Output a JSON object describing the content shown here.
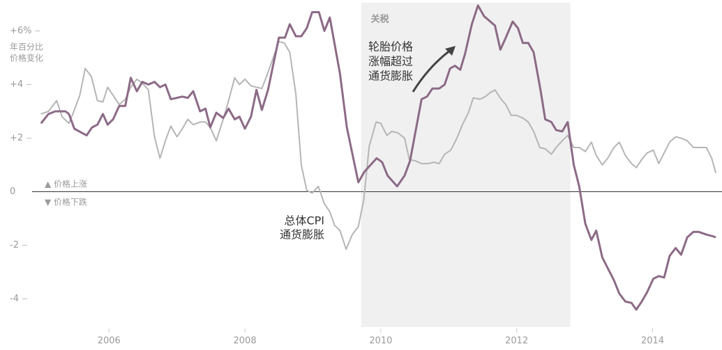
{
  "chart_data": {
    "type": "line",
    "unit_note": [
      "年百分比",
      "价格变化"
    ],
    "annotations": [
      "▲ 价格上涨",
      "▼ 价格下跌"
    ],
    "shaded": {
      "label": "关税",
      "x": [
        2009.71,
        2012.79
      ],
      "color": "#f0f0f0"
    },
    "xlim": [
      2004.55,
      2014.97
    ],
    "ylim": [
      -5.05,
      7.05
    ],
    "xticks": [
      2006,
      2008,
      2010,
      2012,
      2014
    ],
    "yticks": [
      {
        "value": 6,
        "label": "+6%"
      },
      {
        "value": 4,
        "label": "+4"
      },
      {
        "value": 2,
        "label": "+2"
      },
      0,
      -2,
      -4
    ],
    "series": [
      {
        "name": [
          "轮胎价格",
          "涨幅超过",
          "通货膨胀"
        ],
        "color": "#8c6a86",
        "x": [
          2005.0,
          2005.11,
          2005.21,
          2005.36,
          2005.41,
          2005.49,
          2005.67,
          2005.75,
          2005.83,
          2005.91,
          2005.98,
          2006.06,
          2006.15,
          2006.24,
          2006.32,
          2006.41,
          2006.49,
          2006.58,
          2006.67,
          2006.75,
          2006.83,
          2006.91,
          2007.08,
          2007.16,
          2007.24,
          2007.34,
          2007.42,
          2007.49,
          2007.58,
          2007.68,
          2007.76,
          2007.85,
          2007.92,
          2008.0,
          2008.09,
          2008.17,
          2008.25,
          2008.34,
          2008.5,
          2008.59,
          2008.66,
          2008.75,
          2008.83,
          2008.91,
          2008.99,
          2009.09,
          2009.17,
          2009.25,
          2009.4,
          2009.5,
          2009.67,
          2009.76,
          2009.94,
          2010.02,
          2010.1,
          2010.24,
          2010.35,
          2010.43,
          2010.6,
          2010.68,
          2010.76,
          2010.86,
          2010.94,
          2011.02,
          2011.09,
          2011.17,
          2011.24,
          2011.34,
          2011.43,
          2011.52,
          2011.68,
          2011.76,
          2011.84,
          2011.94,
          2012.02,
          2012.09,
          2012.17,
          2012.25,
          2012.35,
          2012.42,
          2012.51,
          2012.58,
          2012.67,
          2012.75,
          2012.84,
          2012.92,
          2013.01,
          2013.1,
          2013.17,
          2013.26,
          2013.34,
          2013.43,
          2013.51,
          2013.6,
          2013.69,
          2013.76,
          2013.84,
          2013.92,
          2014.01,
          2014.09,
          2014.17,
          2014.25,
          2014.34,
          2014.42,
          2014.51,
          2014.6,
          2014.68,
          2014.79,
          2014.87,
          2014.93
        ],
        "values": [
          2.55,
          2.9,
          3.0,
          3.0,
          2.9,
          2.35,
          2.1,
          2.4,
          2.5,
          2.9,
          2.5,
          2.7,
          3.2,
          3.2,
          4.25,
          3.75,
          4.1,
          4.0,
          4.1,
          3.9,
          4.0,
          3.45,
          3.55,
          3.5,
          3.75,
          3.0,
          3.1,
          2.4,
          2.95,
          2.75,
          3.1,
          2.7,
          2.8,
          2.35,
          2.8,
          3.8,
          3.05,
          3.8,
          5.75,
          5.75,
          6.25,
          5.8,
          5.8,
          6.1,
          6.7,
          6.7,
          6.0,
          6.5,
          4.4,
          2.4,
          0.35,
          0.75,
          1.25,
          1.1,
          0.6,
          0.2,
          0.6,
          1.15,
          3.45,
          3.55,
          3.85,
          3.85,
          4.0,
          4.6,
          4.7,
          4.55,
          5.15,
          6.25,
          6.95,
          6.55,
          6.2,
          5.3,
          5.75,
          6.35,
          6.1,
          5.55,
          5.55,
          5.2,
          3.8,
          2.7,
          2.6,
          2.3,
          2.25,
          2.6,
          1.0,
          0.2,
          -1.2,
          -1.8,
          -1.45,
          -2.45,
          -2.85,
          -3.3,
          -3.8,
          -4.1,
          -4.15,
          -4.4,
          -4.1,
          -3.75,
          -3.25,
          -3.15,
          -3.2,
          -2.4,
          -2.1,
          -2.35,
          -1.7,
          -1.5,
          -1.5,
          -1.6,
          -1.65,
          -1.7
        ]
      },
      {
        "name": [
          "总体CPI",
          "通货膨胀"
        ],
        "color": "#b5b5b5",
        "x": [
          2005.0,
          2005.11,
          2005.23,
          2005.31,
          2005.41,
          2005.49,
          2005.57,
          2005.65,
          2005.74,
          2005.83,
          2005.91,
          2005.98,
          2006.06,
          2006.15,
          2006.24,
          2006.32,
          2006.41,
          2006.49,
          2006.58,
          2006.67,
          2006.75,
          2006.83,
          2006.91,
          2007.0,
          2007.08,
          2007.16,
          2007.24,
          2007.34,
          2007.42,
          2007.49,
          2007.58,
          2007.68,
          2007.76,
          2007.85,
          2007.92,
          2008.0,
          2008.09,
          2008.17,
          2008.25,
          2008.34,
          2008.5,
          2008.58,
          2008.66,
          2008.75,
          2008.83,
          2008.91,
          2008.99,
          2009.08,
          2009.17,
          2009.25,
          2009.32,
          2009.4,
          2009.49,
          2009.58,
          2009.67,
          2009.75,
          2009.83,
          2009.93,
          2010.0,
          2010.09,
          2010.16,
          2010.25,
          2010.35,
          2010.42,
          2010.51,
          2010.6,
          2010.7,
          2010.78,
          2010.86,
          2010.94,
          2011.03,
          2011.12,
          2011.2,
          2011.29,
          2011.36,
          2011.46,
          2011.54,
          2011.61,
          2011.68,
          2011.77,
          2011.84,
          2011.92,
          2012.0,
          2012.09,
          2012.17,
          2012.25,
          2012.34,
          2012.42,
          2012.51,
          2012.58,
          2012.67,
          2012.75,
          2012.84,
          2012.92,
          2013.01,
          2013.1,
          2013.17,
          2013.26,
          2013.34,
          2013.43,
          2013.51,
          2013.6,
          2013.69,
          2013.76,
          2013.84,
          2013.92,
          2014.01,
          2014.09,
          2014.17,
          2014.25,
          2014.34,
          2014.42,
          2014.51,
          2014.6,
          2014.68,
          2014.79,
          2014.87,
          2014.93
        ],
        "values": [
          2.9,
          3.0,
          3.4,
          2.8,
          2.55,
          3.05,
          3.6,
          4.6,
          4.3,
          3.4,
          3.35,
          3.9,
          3.6,
          3.25,
          3.45,
          3.9,
          4.2,
          4.05,
          3.8,
          2.05,
          1.25,
          1.9,
          2.45,
          2.05,
          2.35,
          2.7,
          2.5,
          2.6,
          2.6,
          2.4,
          1.9,
          2.7,
          3.4,
          4.25,
          4.0,
          4.2,
          3.95,
          3.9,
          3.85,
          4.45,
          5.6,
          5.55,
          5.2,
          3.65,
          1.0,
          0.05,
          -0.05,
          0.2,
          -0.45,
          -0.75,
          -1.25,
          -1.45,
          -2.15,
          -1.6,
          -1.3,
          -0.3,
          1.7,
          2.6,
          2.55,
          2.1,
          2.25,
          2.2,
          2.0,
          1.2,
          1.15,
          1.05,
          1.05,
          1.1,
          1.05,
          1.4,
          1.55,
          2.0,
          2.5,
          2.95,
          3.5,
          3.45,
          3.55,
          3.7,
          3.8,
          3.45,
          3.25,
          2.85,
          2.85,
          2.75,
          2.6,
          2.25,
          1.65,
          1.6,
          1.4,
          1.65,
          1.9,
          2.1,
          1.65,
          1.65,
          1.5,
          1.85,
          1.35,
          1.0,
          1.25,
          1.65,
          1.85,
          1.35,
          1.05,
          0.9,
          1.2,
          1.45,
          1.55,
          1.05,
          1.45,
          1.85,
          2.05,
          2.0,
          1.9,
          1.65,
          1.65,
          1.65,
          1.25,
          0.7
        ]
      }
    ]
  }
}
